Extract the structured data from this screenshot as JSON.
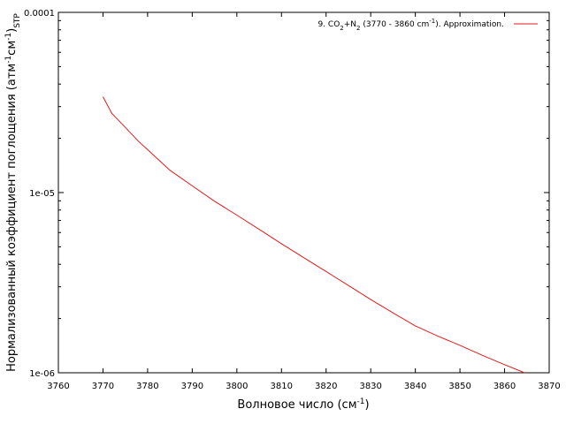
{
  "chart_data": {
    "type": "line",
    "xlabel_main": "Волновое число (см",
    "xlabel_sup": "-1",
    "xlabel_end": ")",
    "ylabel_main": "Нормализованный коэффициент поглощения (атм",
    "ylabel_sup1": "-1",
    "ylabel_mid": "см",
    "ylabel_sup2": "-1",
    "ylabel_close": ")",
    "ylabel_sub": "STP",
    "xlim": [
      3760,
      3870
    ],
    "ylim": [
      1e-06,
      0.0001
    ],
    "yscale": "log",
    "xticks": [
      3760,
      3770,
      3780,
      3790,
      3800,
      3810,
      3820,
      3830,
      3840,
      3850,
      3860,
      3870
    ],
    "xtick_labels": [
      "3760",
      "3770",
      "3780",
      "3790",
      "3800",
      "3810",
      "3820",
      "3830",
      "3840",
      "3850",
      "3860",
      "3870"
    ],
    "yticks": [
      1e-06,
      1e-05,
      0.0001
    ],
    "ytick_labels": [
      "1e-06",
      "1e-05",
      "0.0001"
    ],
    "grid": false,
    "legend_position": "top-right",
    "legend": {
      "prefix": "9. CO",
      "sub1": "2",
      "mid": "+N",
      "sub2": "2",
      "range": " (3770 - 3860 cm",
      "sup": "-1",
      "suffix": "). Approximation."
    },
    "series": [
      {
        "color": "#e41a1c",
        "x": [
          3770,
          3772,
          3775,
          3778,
          3780,
          3785,
          3790,
          3795,
          3800,
          3805,
          3810,
          3815,
          3820,
          3825,
          3830,
          3835,
          3840,
          3845,
          3850,
          3855,
          3860,
          3864.5
        ],
        "y": [
          3.4e-05,
          2.75e-05,
          2.3e-05,
          1.92e-05,
          1.73e-05,
          1.33e-05,
          1.09e-05,
          8.95e-06,
          7.5e-06,
          6.25e-06,
          5.2e-06,
          4.35e-06,
          3.65e-06,
          3.05e-06,
          2.55e-06,
          2.15e-06,
          1.82e-06,
          1.6e-06,
          1.42e-06,
          1.25e-06,
          1.11e-06,
          1e-06
        ]
      }
    ]
  }
}
